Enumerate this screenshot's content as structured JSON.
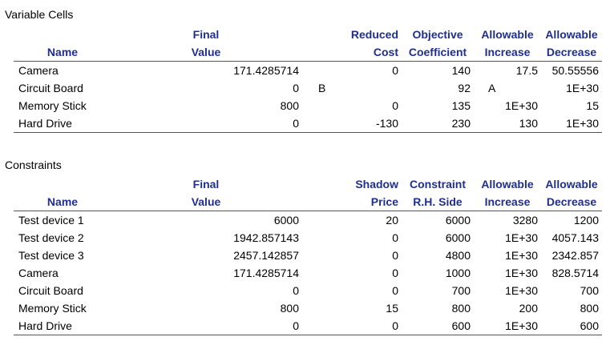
{
  "variable_cells": {
    "title": "Variable Cells",
    "headers": [
      [
        "",
        "Final",
        "Reduced",
        "Objective",
        "Allowable",
        "Allowable"
      ],
      [
        "Name",
        "Value",
        "Cost",
        "Coefficient",
        "Increase",
        "Decrease"
      ]
    ],
    "rows": [
      [
        "Camera",
        "171.4285714",
        "0",
        "140",
        "17.5",
        "50.55556"
      ],
      [
        "Circuit Board",
        "0",
        "B",
        "92",
        "A",
        "1E+30"
      ],
      [
        "Memory Stick",
        "800",
        "0",
        "135",
        "1E+30",
        "15"
      ],
      [
        "Hard Drive",
        "0",
        "-130",
        "230",
        "130",
        "1E+30"
      ]
    ]
  },
  "constraints": {
    "title": "Constraints",
    "headers": [
      [
        "",
        "Final",
        "Shadow",
        "Constraint",
        "Allowable",
        "Allowable"
      ],
      [
        "Name",
        "Value",
        "Price",
        "R.H. Side",
        "Increase",
        "Decrease"
      ]
    ],
    "rows": [
      [
        "Test device 1",
        "6000",
        "20",
        "6000",
        "3280",
        "1200"
      ],
      [
        "Test device 2",
        "1942.857143",
        "0",
        "6000",
        "1E+30",
        "4057.143"
      ],
      [
        "Test device 3",
        "2457.142857",
        "0",
        "4800",
        "1E+30",
        "2342.857"
      ],
      [
        "Camera",
        "171.4285714",
        "0",
        "1000",
        "1E+30",
        "828.5714"
      ],
      [
        "Circuit Board",
        "0",
        "0",
        "700",
        "1E+30",
        "700"
      ],
      [
        "Memory Stick",
        "800",
        "15",
        "800",
        "200",
        "800"
      ],
      [
        "Hard Drive",
        "0",
        "0",
        "600",
        "1E+30",
        "600"
      ]
    ]
  }
}
